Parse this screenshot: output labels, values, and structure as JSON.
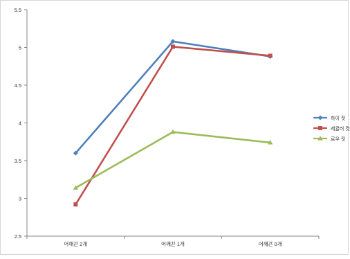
{
  "chart_data": {
    "type": "line",
    "categories": [
      "어깨끈 2개",
      "어깨끈 1개",
      "어깨끈 0개"
    ],
    "ylim": [
      2.5,
      5.5
    ],
    "yticks": [
      2.5,
      3,
      3.5,
      4,
      4.5,
      5,
      5.5
    ],
    "ytick_labels": [
      "2.5",
      "3",
      "3.5",
      "4",
      "4.5",
      "5",
      "5.5"
    ],
    "grid": false,
    "legend_position": "right",
    "series": [
      {
        "name": "하이 컷",
        "values": [
          3.6,
          5.08,
          4.88
        ],
        "color": "#4f81bd",
        "marker": "diamond"
      },
      {
        "name": "레귤러 컷",
        "values": [
          2.92,
          5.01,
          4.89
        ],
        "color": "#c0504d",
        "marker": "square"
      },
      {
        "name": "로우 컷",
        "values": [
          3.14,
          3.88,
          3.74
        ],
        "color": "#9bbb59",
        "marker": "triangle"
      }
    ]
  }
}
